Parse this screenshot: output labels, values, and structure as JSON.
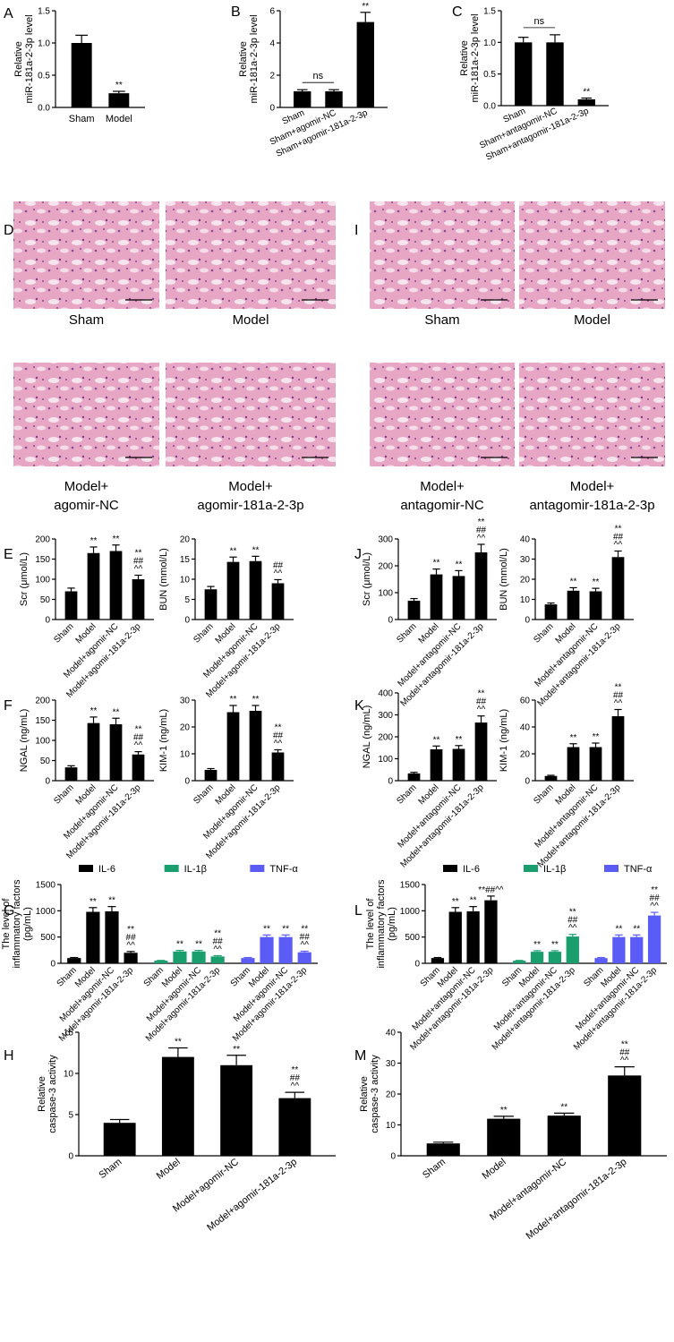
{
  "chart_data": [
    {
      "type": "bar",
      "panel": "A",
      "y_label": [
        "Relative",
        "miR-181a-2-3p level"
      ],
      "categories": [
        "Sham",
        "Model"
      ],
      "values": [
        1.0,
        0.22
      ],
      "errors": [
        0.12,
        0.03
      ],
      "annotations": [
        null,
        [
          "**"
        ]
      ],
      "ylim": [
        0,
        1.5
      ],
      "yticks": [
        {
          "value": 0,
          "label": "0.0"
        },
        {
          "value": 0.5,
          "label": "0.5"
        },
        {
          "value": 1,
          "label": "1.0"
        },
        {
          "value": 1.5,
          "label": "1.5"
        }
      ],
      "color": "#000000"
    },
    {
      "type": "bar",
      "panel": "B",
      "y_label": [
        "Relative",
        "miR-181a-2-3p level"
      ],
      "categories": [
        "Sham",
        "Sham+agomir-NC",
        "Sham+agomir-181a-2-3p"
      ],
      "values": [
        1.0,
        1.0,
        5.3
      ],
      "errors": [
        0.1,
        0.1,
        0.6
      ],
      "annotations": [
        null,
        null,
        [
          "**"
        ]
      ],
      "bracket_label": "ns",
      "ylim": [
        0,
        6
      ],
      "yticks": [
        0,
        2,
        4,
        6
      ],
      "color": "#000000"
    },
    {
      "type": "bar",
      "panel": "C",
      "y_label": [
        "Relative",
        "miR-181a-2-3p level"
      ],
      "categories": [
        "Sham",
        "Sham+antagomir-NC",
        "Sham+antagomir-181a-2-3p"
      ],
      "values": [
        1.0,
        1.0,
        0.1
      ],
      "errors": [
        0.08,
        0.12,
        0.02
      ],
      "annotations": [
        null,
        null,
        [
          "**"
        ]
      ],
      "bracket_label": "ns",
      "ylim": [
        0,
        1.5
      ],
      "yticks": [
        {
          "value": 0,
          "label": "0.0"
        },
        {
          "value": 0.5,
          "label": "0.5"
        },
        {
          "value": 1,
          "label": "1.0"
        },
        {
          "value": 1.5,
          "label": "1.5"
        }
      ],
      "color": "#000000"
    },
    {
      "type": "bar",
      "panel": "E",
      "y_label": [
        "Scr (μmol/L)"
      ],
      "categories": [
        "Sham",
        "Model",
        "Model+agomir-NC",
        "Model+agomir-181a-2-3p"
      ],
      "values": [
        70,
        165,
        170,
        100
      ],
      "errors": [
        8,
        15,
        15,
        10
      ],
      "annotations": [
        null,
        [
          "**"
        ],
        [
          "**"
        ],
        [
          "**",
          "##",
          "^^"
        ]
      ],
      "ylim": [
        0,
        200
      ],
      "yticks": [
        0,
        50,
        100,
        150,
        200
      ],
      "color": "#000000"
    },
    {
      "type": "bar",
      "y_label": [
        "BUN (mmol/L)"
      ],
      "categories": [
        "Sham",
        "Model",
        "Model+agomir-NC",
        "Model+agomir-181a-2-3p"
      ],
      "values": [
        7.5,
        14.3,
        14.5,
        9
      ],
      "errors": [
        0.7,
        1.2,
        1.2,
        0.9
      ],
      "annotations": [
        null,
        [
          "**"
        ],
        [
          "**"
        ],
        [
          "##",
          "^^"
        ]
      ],
      "ylim": [
        0,
        20
      ],
      "yticks": [
        0,
        5,
        10,
        15,
        20
      ],
      "color": "#000000"
    },
    {
      "type": "bar",
      "panel": "J",
      "y_label": [
        "Scr (μmol/L)"
      ],
      "categories": [
        "Sham",
        "Model",
        "Model+antagomir-NC",
        "Model+antagomir-181a-2-3p"
      ],
      "values": [
        70,
        168,
        162,
        250
      ],
      "errors": [
        8,
        20,
        20,
        30
      ],
      "annotations": [
        null,
        [
          "**"
        ],
        [
          "**"
        ],
        [
          "**",
          "##",
          "^^"
        ]
      ],
      "ylim": [
        0,
        300
      ],
      "yticks": [
        0,
        100,
        200,
        300
      ],
      "color": "#000000"
    },
    {
      "type": "bar",
      "y_label": [
        "BUN (mmol/L)"
      ],
      "categories": [
        "Sham",
        "Model",
        "Model+antagomir-NC",
        "Model+antagomir-181a-2-3p"
      ],
      "values": [
        7.5,
        14.3,
        14,
        31
      ],
      "errors": [
        0.7,
        1.5,
        1.5,
        3
      ],
      "annotations": [
        null,
        [
          "**"
        ],
        [
          "**"
        ],
        [
          "**",
          "##",
          "^^"
        ]
      ],
      "ylim": [
        0,
        40
      ],
      "yticks": [
        0,
        10,
        20,
        30,
        40
      ],
      "color": "#000000"
    },
    {
      "type": "bar",
      "panel": "F",
      "y_label": [
        "NGAL (ng/mL)"
      ],
      "categories": [
        "Sham",
        "Model",
        "Model+agomir-NC",
        "Model+agomir-181a-2-3p"
      ],
      "values": [
        33,
        143,
        140,
        65
      ],
      "errors": [
        4,
        15,
        15,
        7
      ],
      "annotations": [
        null,
        [
          "**"
        ],
        [
          "**"
        ],
        [
          "**",
          "##",
          "^^"
        ]
      ],
      "ylim": [
        0,
        200
      ],
      "yticks": [
        0,
        50,
        100,
        150,
        200
      ],
      "color": "#000000"
    },
    {
      "type": "bar",
      "y_label": [
        "KIM-1 (ng/mL)"
      ],
      "categories": [
        "Sham",
        "Model",
        "Model+agomir-NC",
        "Model+agomir-181a-2-3p"
      ],
      "values": [
        4,
        25.5,
        26,
        10.5
      ],
      "errors": [
        0.5,
        2.5,
        2,
        1
      ],
      "annotations": [
        null,
        [
          "**"
        ],
        [
          "**"
        ],
        [
          "**",
          "##",
          "^^"
        ]
      ],
      "ylim": [
        0,
        30
      ],
      "yticks": [
        0,
        10,
        20,
        30
      ],
      "color": "#000000"
    },
    {
      "type": "bar",
      "panel": "K",
      "y_label": [
        "NGAL (ng/mL)"
      ],
      "categories": [
        "Sham",
        "Model",
        "Model+antagomir-NC",
        "Model+antagomir-181a-2-3p"
      ],
      "values": [
        33,
        143,
        145,
        265
      ],
      "errors": [
        5,
        15,
        15,
        30
      ],
      "annotations": [
        null,
        [
          "**"
        ],
        [
          "**"
        ],
        [
          "**",
          "##",
          "^^"
        ]
      ],
      "ylim": [
        0,
        400
      ],
      "yticks": [
        0,
        100,
        200,
        300,
        400
      ],
      "color": "#000000"
    },
    {
      "type": "bar",
      "y_label": [
        "KIM-1 (ng/mL)"
      ],
      "categories": [
        "Sham",
        "Model",
        "Model+antagomir-NC",
        "Model+antagomir-181a-2-3p"
      ],
      "values": [
        3.5,
        25,
        25,
        48
      ],
      "errors": [
        0.5,
        2.5,
        3,
        5
      ],
      "annotations": [
        null,
        [
          "**"
        ],
        [
          "**"
        ],
        [
          "**",
          "##",
          "^^"
        ]
      ],
      "ylim": [
        0,
        60
      ],
      "yticks": [
        0,
        20,
        40,
        60
      ],
      "color": "#000000"
    },
    {
      "type": "grouped_bar",
      "panel": "G",
      "y_label": [
        "The level of",
        "inflammatory factors",
        "(pg/mL)"
      ],
      "categories": [
        "Sham",
        "Model",
        "Model+agomir-NC",
        "Model+agomir-181a-2-3p"
      ],
      "series": [
        {
          "name": "IL-6",
          "color": "#000000",
          "values": [
            100,
            980,
            990,
            200
          ],
          "errors": [
            10,
            80,
            90,
            25
          ],
          "annotations": [
            null,
            [
              "**"
            ],
            [
              "**"
            ],
            [
              "**",
              "##",
              "^^"
            ]
          ]
        },
        {
          "name": "IL-1β",
          "color": "#1a9e6e",
          "values": [
            50,
            225,
            225,
            130
          ],
          "errors": [
            5,
            20,
            20,
            15
          ],
          "annotations": [
            null,
            [
              "**"
            ],
            [
              "**"
            ],
            [
              "**",
              "##",
              "^^"
            ]
          ]
        },
        {
          "name": "TNF-α",
          "color": "#5b5bf5",
          "values": [
            100,
            500,
            500,
            210
          ],
          "errors": [
            10,
            40,
            40,
            20
          ],
          "annotations": [
            null,
            [
              "**"
            ],
            [
              "**"
            ],
            [
              "**",
              "##",
              "^^"
            ]
          ]
        }
      ],
      "ylim": [
        0,
        1500
      ],
      "yticks": [
        0,
        500,
        1000,
        1500
      ]
    },
    {
      "type": "grouped_bar",
      "panel": "L",
      "y_label": [
        "The level of",
        "inflammatory factors",
        "(pg/mL)"
      ],
      "categories": [
        "Sham",
        "Model",
        "Model+antagomir-NC",
        "Model+antagomir-181a-2-3p"
      ],
      "series": [
        {
          "name": "IL-6",
          "color": "#000000",
          "values": [
            100,
            980,
            990,
            1200
          ],
          "errors": [
            10,
            80,
            90,
            80
          ],
          "annotations": [
            null,
            [
              "**"
            ],
            [
              "**"
            ],
            [
              "**##^^"
            ]
          ]
        },
        {
          "name": "IL-1β",
          "color": "#1a9e6e",
          "values": [
            50,
            220,
            220,
            510
          ],
          "errors": [
            5,
            20,
            20,
            40
          ],
          "annotations": [
            null,
            [
              "**"
            ],
            [
              "**"
            ],
            [
              "**",
              "##",
              "^^"
            ]
          ]
        },
        {
          "name": "TNF-α",
          "color": "#5b5bf5",
          "values": [
            100,
            500,
            500,
            910
          ],
          "errors": [
            10,
            40,
            40,
            60
          ],
          "annotations": [
            null,
            [
              "**"
            ],
            [
              "**"
            ],
            [
              "**",
              "##",
              "^^"
            ]
          ]
        }
      ],
      "ylim": [
        0,
        1500
      ],
      "yticks": [
        0,
        500,
        1000,
        1500
      ]
    },
    {
      "type": "bar",
      "panel": "H",
      "y_label": [
        "Relative",
        "caspase-3 activity"
      ],
      "categories": [
        "Sham",
        "Model",
        "Model+agomir-NC",
        "Model+agomir-181a-2-3p"
      ],
      "values": [
        4,
        12,
        11,
        7
      ],
      "errors": [
        0.4,
        1.1,
        1.2,
        0.7
      ],
      "annotations": [
        null,
        [
          "**"
        ],
        [
          "**"
        ],
        [
          "**",
          "##",
          "^^"
        ]
      ],
      "ylim": [
        0,
        15
      ],
      "yticks": [
        0,
        5,
        10,
        15
      ],
      "color": "#000000"
    },
    {
      "type": "bar",
      "panel": "M",
      "y_label": [
        "Relative",
        "caspase-3 activity"
      ],
      "categories": [
        "Sham",
        "Model",
        "Model+antagomir-NC",
        "Model+antagomir-181a-2-3p"
      ],
      "values": [
        4,
        12,
        13,
        26
      ],
      "errors": [
        0.4,
        0.8,
        0.8,
        2.8
      ],
      "annotations": [
        null,
        [
          "**"
        ],
        [
          "**"
        ],
        [
          "**",
          "##",
          "^^"
        ]
      ],
      "ylim": [
        0,
        40
      ],
      "yticks": [
        0,
        10,
        20,
        30,
        40
      ],
      "color": "#000000"
    }
  ],
  "micrographs": [
    {
      "panel": "D",
      "captions": [
        [
          "Sham"
        ],
        [
          "Model"
        ],
        [
          "Model+",
          "agomir-NC"
        ],
        [
          "Model+",
          "agomir-181a-2-3p"
        ]
      ]
    },
    {
      "panel": "I",
      "captions": [
        [
          "Sham"
        ],
        [
          "Model"
        ],
        [
          "Model+",
          "antagomir-NC"
        ],
        [
          "Model+",
          "antagomir-181a-2-3p"
        ]
      ]
    }
  ]
}
